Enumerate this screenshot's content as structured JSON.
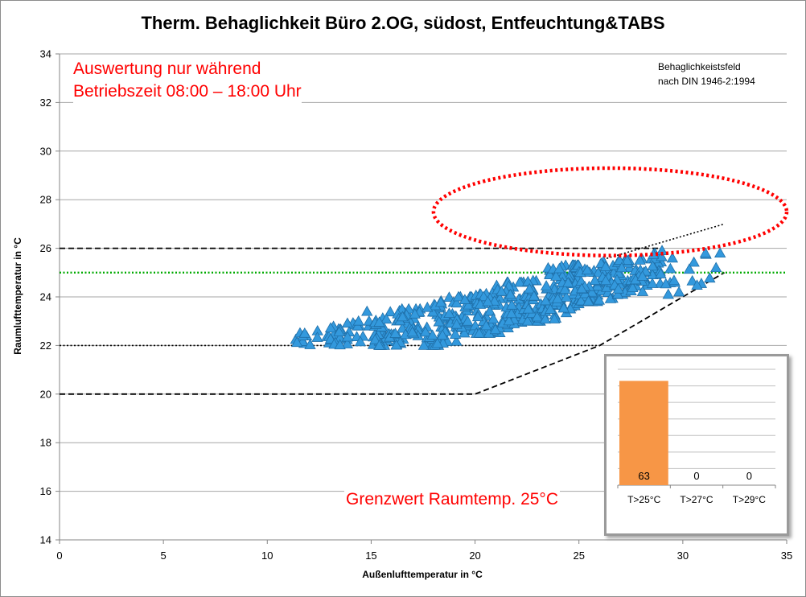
{
  "chart_data": {
    "type": "scatter",
    "title": "Therm. Behaglichkeit Büro 2.OG, südost, Entfeuchtung&TABS",
    "xlabel": "Außenlufttemperatur in °C",
    "ylabel": "Raumlufttemperatur in °C",
    "xlim": [
      0,
      35
    ],
    "ylim": [
      14,
      34
    ],
    "x_ticks": [
      0,
      5,
      10,
      15,
      20,
      25,
      30,
      35
    ],
    "y_ticks": [
      14,
      16,
      18,
      20,
      22,
      24,
      26,
      28,
      30,
      32,
      34
    ],
    "grid": "horizontal",
    "marker": "triangle",
    "marker_color": "#3399dd",
    "scatter_clusters": [
      {
        "x": [
          11.2,
          12.8
        ],
        "y": [
          22.0,
          22.6
        ],
        "n": 10
      },
      {
        "x": [
          12.8,
          15.0
        ],
        "y": [
          22.0,
          23.0
        ],
        "n": 35
      },
      {
        "x": [
          15.0,
          17.5
        ],
        "y": [
          22.0,
          23.5
        ],
        "n": 80
      },
      {
        "x": [
          17.5,
          20.0
        ],
        "y": [
          22.0,
          24.0
        ],
        "n": 90
      },
      {
        "x": [
          20.0,
          22.5
        ],
        "y": [
          22.5,
          24.6
        ],
        "n": 100
      },
      {
        "x": [
          22.5,
          25.0
        ],
        "y": [
          23.0,
          25.3
        ],
        "n": 110
      },
      {
        "x": [
          25.0,
          27.5
        ],
        "y": [
          23.8,
          25.5
        ],
        "n": 90
      },
      {
        "x": [
          27.5,
          29.5
        ],
        "y": [
          24.2,
          25.8
        ],
        "n": 45
      },
      {
        "x": [
          29.5,
          31.8
        ],
        "y": [
          24.2,
          25.8
        ],
        "n": 12
      }
    ],
    "scatter_points_extra": [
      [
        29.0,
        25.9
      ],
      [
        29.3,
        24.1
      ],
      [
        31.6,
        25.2
      ],
      [
        11.8,
        22.5
      ],
      [
        14.8,
        23.4
      ]
    ],
    "comfort_lines": [
      {
        "name": "upper",
        "style": "dashed",
        "color": "#000000",
        "points": [
          [
            0,
            26
          ],
          [
            29,
            26
          ]
        ]
      },
      {
        "name": "upper-extension",
        "style": "dotted",
        "color": "#000000",
        "points": [
          [
            26,
            25.5
          ],
          [
            32,
            27
          ]
        ]
      },
      {
        "name": "lower",
        "style": "dashed",
        "color": "#000000",
        "points": [
          [
            0,
            20
          ],
          [
            20,
            20
          ],
          [
            26,
            22
          ],
          [
            32,
            25
          ]
        ]
      },
      {
        "name": "lower-dotted",
        "style": "dotted",
        "color": "#000000",
        "points": [
          [
            0,
            22
          ],
          [
            26,
            22
          ]
        ]
      },
      {
        "name": "limit-25",
        "style": "dotted",
        "color": "#00aa00",
        "points": [
          [
            0,
            25
          ],
          [
            35,
            25
          ]
        ]
      }
    ],
    "highlight_ellipse": {
      "center": [
        26.5,
        27.5
      ],
      "radius_x": 8.5,
      "radius_y": 1.8,
      "color": "#ff0000"
    },
    "inset": {
      "type": "bar",
      "categories": [
        "T>25°C",
        "T>27°C",
        "T>29°C"
      ],
      "values": [
        63,
        0,
        0
      ],
      "bar_color": "#f79646",
      "ylim": [
        0,
        70
      ]
    }
  },
  "annotations": {
    "note_line1": "Auswertung nur während",
    "note_line2": "Betriebszeit 08:00 – 18:00 Uhr",
    "comfort_line1": "Behaglichkeistsfeld",
    "comfort_line2": "nach DIN 1946-2:1994",
    "limit_note": "Grenzwert Raumtemp. 25°C"
  }
}
